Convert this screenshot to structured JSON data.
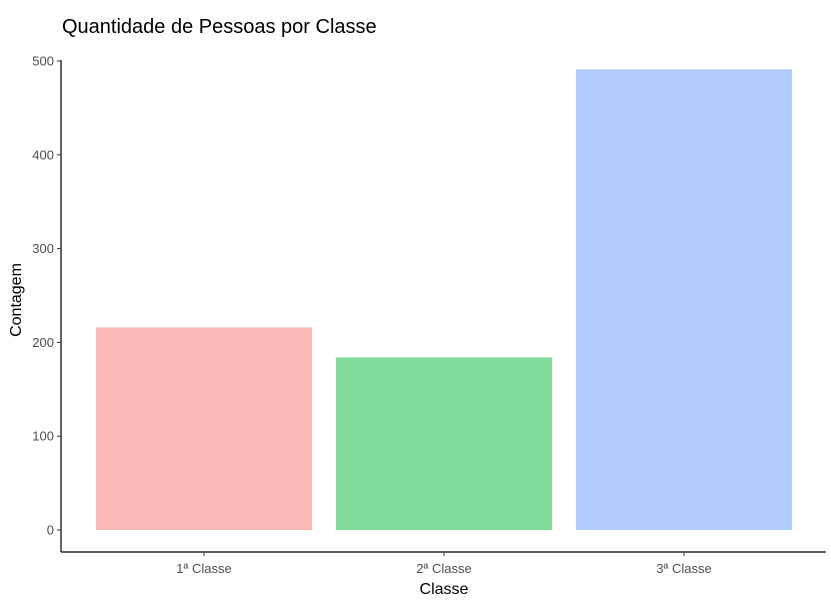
{
  "chart_data": {
    "type": "bar",
    "title": "Quantidade de Pessoas por Classe",
    "xlabel": "Classe",
    "ylabel": "Contagem",
    "categories": [
      "1ª Classe",
      "2ª Classe",
      "3ª Classe"
    ],
    "values": [
      216,
      184,
      491
    ],
    "colors": [
      "#F8B9B5",
      "#80DB99",
      "#B0CCFF"
    ],
    "ylim": [
      0,
      515
    ],
    "yticks": [
      0,
      100,
      200,
      300,
      400,
      500
    ],
    "grid": false,
    "legend": "none"
  }
}
